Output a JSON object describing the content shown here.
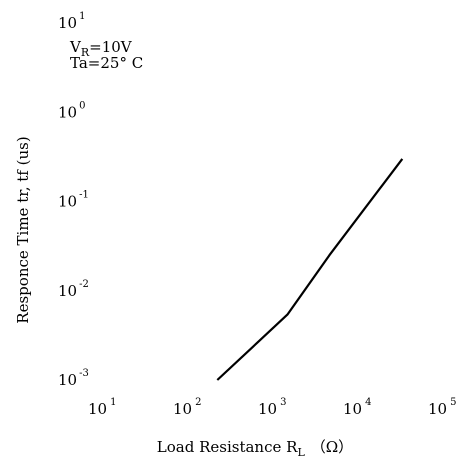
{
  "chart_data": {
    "type": "line",
    "x_scale": "log",
    "y_scale": "log",
    "xlim": [
      10,
      100000
    ],
    "ylim": [
      0.001,
      10
    ],
    "grid": false,
    "xlabel": {
      "main": "Load Resistance R",
      "sub": "L",
      "unit": "（Ω）"
    },
    "ylabel": "Responce Time tr, tf (us)",
    "annotations": [
      {
        "text_main": "V",
        "text_sub": "R",
        "text_after": "=10V"
      },
      {
        "text": "Ta=25° C"
      }
    ],
    "x_ticks": [
      {
        "base": "10",
        "exp": "1",
        "value": 10
      },
      {
        "base": "10",
        "exp": "2",
        "value": 100
      },
      {
        "base": "10",
        "exp": "3",
        "value": 1000
      },
      {
        "base": "10",
        "exp": "4",
        "value": 10000
      },
      {
        "base": "10",
        "exp": "5",
        "value": 100000
      }
    ],
    "y_ticks": [
      {
        "base": "10",
        "exp": "1",
        "value": 10
      },
      {
        "base": "10",
        "exp": "0",
        "value": 1
      },
      {
        "base": "10",
        "exp": "-1",
        "value": 0.1
      },
      {
        "base": "10",
        "exp": "-2",
        "value": 0.01
      },
      {
        "base": "10",
        "exp": "-3",
        "value": 0.001
      }
    ],
    "series": [
      {
        "x": [
          240,
          1600,
          5000,
          36000
        ],
        "y": [
          0.001,
          0.0054,
          0.025,
          0.3
        ]
      }
    ]
  }
}
